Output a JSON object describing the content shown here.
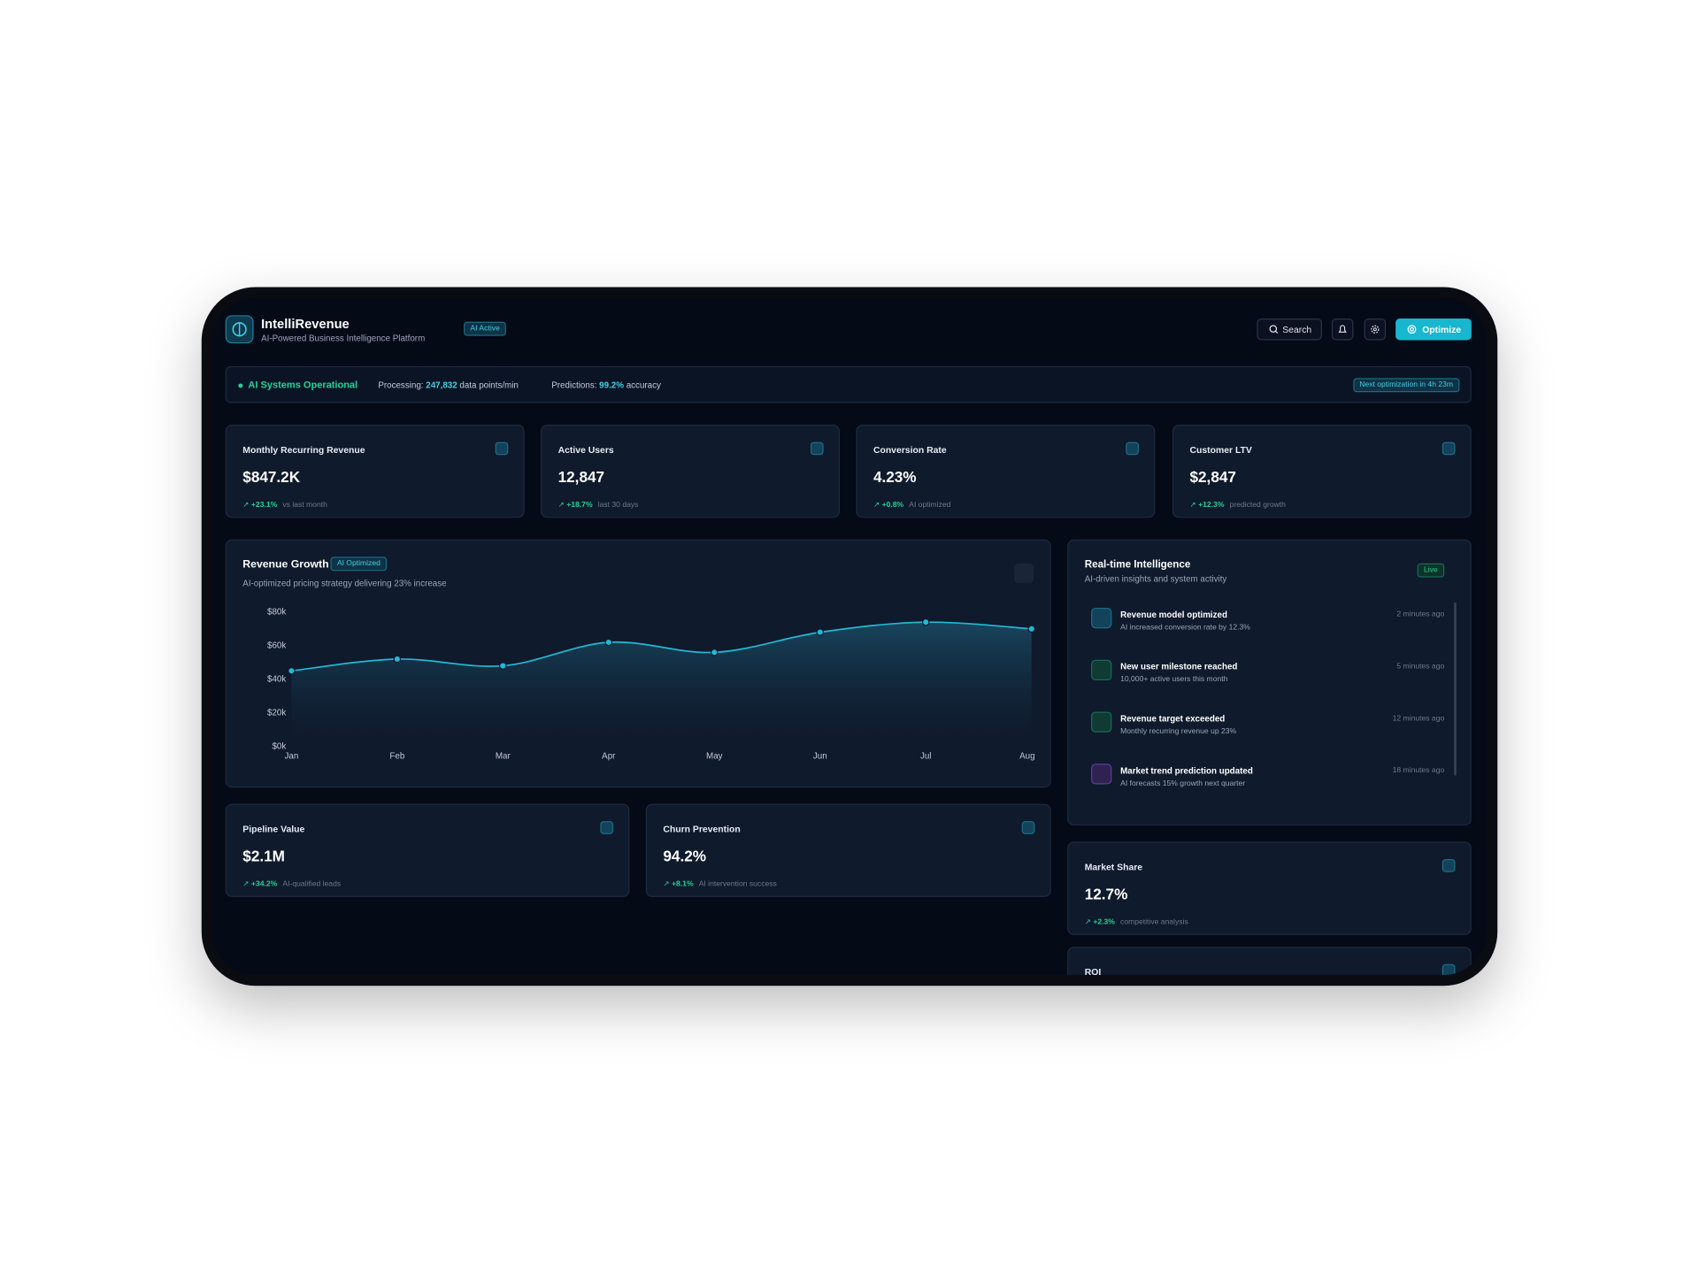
{
  "header": {
    "title": "IntelliRevenue",
    "subtitle": "AI-Powered Business Intelligence Platform",
    "badge": "AI Active",
    "search": "Search",
    "optimize": "Optimize"
  },
  "status": {
    "label": "AI Systems Operational",
    "processing_label": "Processing:",
    "processing_value": "247,832",
    "processing_unit": "data points/min",
    "predictions_label": "Predictions:",
    "predictions_value": "99.2%",
    "predictions_unit": "accuracy",
    "next": "Next optimization in 4h 23m"
  },
  "kpis": [
    {
      "title": "Monthly Recurring Revenue",
      "value": "$847.2K",
      "change": "+23.1%",
      "note": "vs last month"
    },
    {
      "title": "Active Users",
      "value": "12,847",
      "change": "+18.7%",
      "note": "last 30 days"
    },
    {
      "title": "Conversion Rate",
      "value": "4.23%",
      "change": "+0.8%",
      "note": "AI optimized"
    },
    {
      "title": "Customer LTV",
      "value": "$2,847",
      "change": "+12.3%",
      "note": "predicted growth"
    }
  ],
  "chart_data": {
    "type": "line",
    "title": "Revenue Growth",
    "badge": "AI Optimized",
    "subtitle": "AI-optimized pricing strategy delivering 23% increase",
    "categories": [
      "Jan",
      "Feb",
      "Mar",
      "Apr",
      "May",
      "Jun",
      "Jul",
      "Aug"
    ],
    "values": [
      45,
      52,
      48,
      62,
      56,
      68,
      74,
      70
    ],
    "color": "#22b8d6",
    "ylim": [
      0,
      80
    ],
    "yticks": [
      {
        "value": 0,
        "label": "$0k"
      },
      {
        "value": 20,
        "label": "$20k"
      },
      {
        "value": 40,
        "label": "$40k"
      },
      {
        "value": 60,
        "label": "$60k"
      },
      {
        "value": 80,
        "label": "$80k"
      }
    ],
    "grid": false
  },
  "activity": {
    "title": "Real-time Intelligence",
    "subtitle": "AI-driven insights and system activity",
    "badge": "Live",
    "items": [
      {
        "title": "Revenue model optimized",
        "desc": "AI increased conversion rate by 12.3%",
        "time": "2 minutes ago"
      },
      {
        "title": "New user milestone reached",
        "desc": "10,000+ active users this month",
        "time": "5 minutes ago"
      },
      {
        "title": "Revenue target exceeded",
        "desc": "Monthly recurring revenue up 23%",
        "time": "12 minutes ago"
      },
      {
        "title": "Market trend prediction updated",
        "desc": "AI forecasts 15% growth next quarter",
        "time": "18 minutes ago"
      }
    ]
  },
  "lower_kpis": [
    {
      "title": "Pipeline Value",
      "value": "$2.1M",
      "change": "+34.2%",
      "note": "AI-qualified leads"
    },
    {
      "title": "Churn Prevention",
      "value": "94.2%",
      "change": "+8.1%",
      "note": "AI intervention success"
    }
  ],
  "side_kpis": [
    {
      "title": "Market Share",
      "value": "12.7%",
      "change": "+2.3%",
      "note": "competitive analysis"
    },
    {
      "title": "ROI"
    }
  ]
}
